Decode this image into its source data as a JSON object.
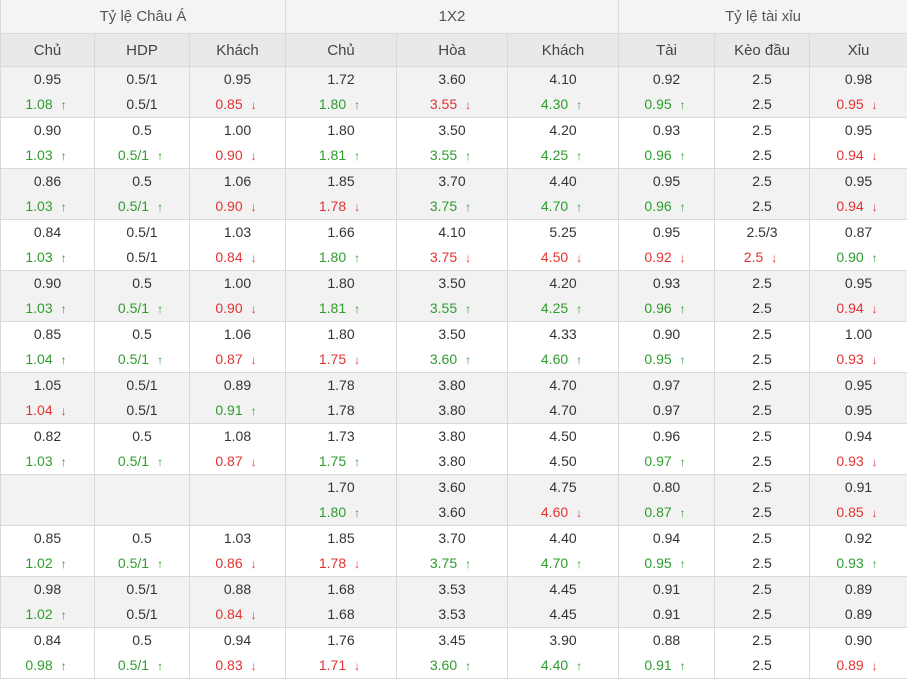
{
  "header": {
    "groups": [
      "Tỷ lệ Châu Á",
      "1X2",
      "Tỷ lệ tài xỉu"
    ],
    "columns": [
      "Chủ",
      "HDP",
      "Khách",
      "Chủ",
      "Hòa",
      "Khách",
      "Tài",
      "Kèo đầu",
      "Xỉu"
    ]
  },
  "colors": {
    "up": "#2e9d2e",
    "down": "#e23333",
    "neutral": "#333333"
  },
  "rows": [
    {
      "open": [
        "0.95",
        "0.5/1",
        "0.95",
        "1.72",
        "3.60",
        "4.10",
        "0.92",
        "2.5",
        "0.98"
      ],
      "live": [
        [
          "1.08",
          "up"
        ],
        [
          "0.5/1",
          ""
        ],
        [
          "0.85",
          "down"
        ],
        [
          "1.80",
          "up"
        ],
        [
          "3.55",
          "down"
        ],
        [
          "4.30",
          "up"
        ],
        [
          "0.95",
          "up"
        ],
        [
          "2.5",
          ""
        ],
        [
          "0.95",
          "down"
        ]
      ]
    },
    {
      "open": [
        "0.90",
        "0.5",
        "1.00",
        "1.80",
        "3.50",
        "4.20",
        "0.93",
        "2.5",
        "0.95"
      ],
      "live": [
        [
          "1.03",
          "up"
        ],
        [
          "0.5/1",
          "up"
        ],
        [
          "0.90",
          "down"
        ],
        [
          "1.81",
          "up"
        ],
        [
          "3.55",
          "up"
        ],
        [
          "4.25",
          "up"
        ],
        [
          "0.96",
          "up"
        ],
        [
          "2.5",
          ""
        ],
        [
          "0.94",
          "down"
        ]
      ]
    },
    {
      "open": [
        "0.86",
        "0.5",
        "1.06",
        "1.85",
        "3.70",
        "4.40",
        "0.95",
        "2.5",
        "0.95"
      ],
      "live": [
        [
          "1.03",
          "up"
        ],
        [
          "0.5/1",
          "up"
        ],
        [
          "0.90",
          "down"
        ],
        [
          "1.78",
          "down"
        ],
        [
          "3.75",
          "up"
        ],
        [
          "4.70",
          "up"
        ],
        [
          "0.96",
          "up"
        ],
        [
          "2.5",
          ""
        ],
        [
          "0.94",
          "down"
        ]
      ]
    },
    {
      "open": [
        "0.84",
        "0.5/1",
        "1.03",
        "1.66",
        "4.10",
        "5.25",
        "0.95",
        "2.5/3",
        "0.87"
      ],
      "live": [
        [
          "1.03",
          "up"
        ],
        [
          "0.5/1",
          ""
        ],
        [
          "0.84",
          "down"
        ],
        [
          "1.80",
          "up"
        ],
        [
          "3.75",
          "down"
        ],
        [
          "4.50",
          "down"
        ],
        [
          "0.92",
          "down"
        ],
        [
          "2.5",
          "down"
        ],
        [
          "0.90",
          "up"
        ]
      ]
    },
    {
      "open": [
        "0.90",
        "0.5",
        "1.00",
        "1.80",
        "3.50",
        "4.20",
        "0.93",
        "2.5",
        "0.95"
      ],
      "live": [
        [
          "1.03",
          "up"
        ],
        [
          "0.5/1",
          "up"
        ],
        [
          "0.90",
          "down"
        ],
        [
          "1.81",
          "up"
        ],
        [
          "3.55",
          "up"
        ],
        [
          "4.25",
          "up"
        ],
        [
          "0.96",
          "up"
        ],
        [
          "2.5",
          ""
        ],
        [
          "0.94",
          "down"
        ]
      ]
    },
    {
      "open": [
        "0.85",
        "0.5",
        "1.06",
        "1.80",
        "3.50",
        "4.33",
        "0.90",
        "2.5",
        "1.00"
      ],
      "live": [
        [
          "1.04",
          "up"
        ],
        [
          "0.5/1",
          "up"
        ],
        [
          "0.87",
          "down"
        ],
        [
          "1.75",
          "down"
        ],
        [
          "3.60",
          "up"
        ],
        [
          "4.60",
          "up"
        ],
        [
          "0.95",
          "up"
        ],
        [
          "2.5",
          ""
        ],
        [
          "0.93",
          "down"
        ]
      ]
    },
    {
      "open": [
        "1.05",
        "0.5/1",
        "0.89",
        "1.78",
        "3.80",
        "4.70",
        "0.97",
        "2.5",
        "0.95"
      ],
      "live": [
        [
          "1.04",
          "down"
        ],
        [
          "0.5/1",
          ""
        ],
        [
          "0.91",
          "up"
        ],
        [
          "1.78",
          ""
        ],
        [
          "3.80",
          ""
        ],
        [
          "4.70",
          ""
        ],
        [
          "0.97",
          ""
        ],
        [
          "2.5",
          ""
        ],
        [
          "0.95",
          ""
        ]
      ]
    },
    {
      "open": [
        "0.82",
        "0.5",
        "1.08",
        "1.73",
        "3.80",
        "4.50",
        "0.96",
        "2.5",
        "0.94"
      ],
      "live": [
        [
          "1.03",
          "up"
        ],
        [
          "0.5/1",
          "up"
        ],
        [
          "0.87",
          "down"
        ],
        [
          "1.75",
          "up"
        ],
        [
          "3.80",
          ""
        ],
        [
          "4.50",
          ""
        ],
        [
          "0.97",
          "up"
        ],
        [
          "2.5",
          ""
        ],
        [
          "0.93",
          "down"
        ]
      ]
    },
    {
      "open": [
        "",
        "",
        "",
        "1.70",
        "3.60",
        "4.75",
        "0.80",
        "2.5",
        "0.91"
      ],
      "live": [
        [
          "",
          ""
        ],
        [
          "",
          ""
        ],
        [
          "",
          ""
        ],
        [
          "1.80",
          "up"
        ],
        [
          "3.60",
          ""
        ],
        [
          "4.60",
          "down"
        ],
        [
          "0.87",
          "up"
        ],
        [
          "2.5",
          ""
        ],
        [
          "0.85",
          "down"
        ]
      ]
    },
    {
      "open": [
        "0.85",
        "0.5",
        "1.03",
        "1.85",
        "3.70",
        "4.40",
        "0.94",
        "2.5",
        "0.92"
      ],
      "live": [
        [
          "1.02",
          "up"
        ],
        [
          "0.5/1",
          "up"
        ],
        [
          "0.86",
          "down"
        ],
        [
          "1.78",
          "down"
        ],
        [
          "3.75",
          "up"
        ],
        [
          "4.70",
          "up"
        ],
        [
          "0.95",
          "up"
        ],
        [
          "2.5",
          ""
        ],
        [
          "0.93",
          "up"
        ]
      ]
    },
    {
      "open": [
        "0.98",
        "0.5/1",
        "0.88",
        "1.68",
        "3.53",
        "4.45",
        "0.91",
        "2.5",
        "0.89"
      ],
      "live": [
        [
          "1.02",
          "up"
        ],
        [
          "0.5/1",
          ""
        ],
        [
          "0.84",
          "down"
        ],
        [
          "1.68",
          ""
        ],
        [
          "3.53",
          ""
        ],
        [
          "4.45",
          ""
        ],
        [
          "0.91",
          ""
        ],
        [
          "2.5",
          ""
        ],
        [
          "0.89",
          ""
        ]
      ]
    },
    {
      "open": [
        "0.84",
        "0.5",
        "0.94",
        "1.76",
        "3.45",
        "3.90",
        "0.88",
        "2.5",
        "0.90"
      ],
      "live": [
        [
          "0.98",
          "up"
        ],
        [
          "0.5/1",
          "up"
        ],
        [
          "0.83",
          "down"
        ],
        [
          "1.71",
          "down"
        ],
        [
          "3.60",
          "up"
        ],
        [
          "4.40",
          "up"
        ],
        [
          "0.91",
          "up"
        ],
        [
          "2.5",
          ""
        ],
        [
          "0.89",
          "down"
        ]
      ]
    }
  ]
}
